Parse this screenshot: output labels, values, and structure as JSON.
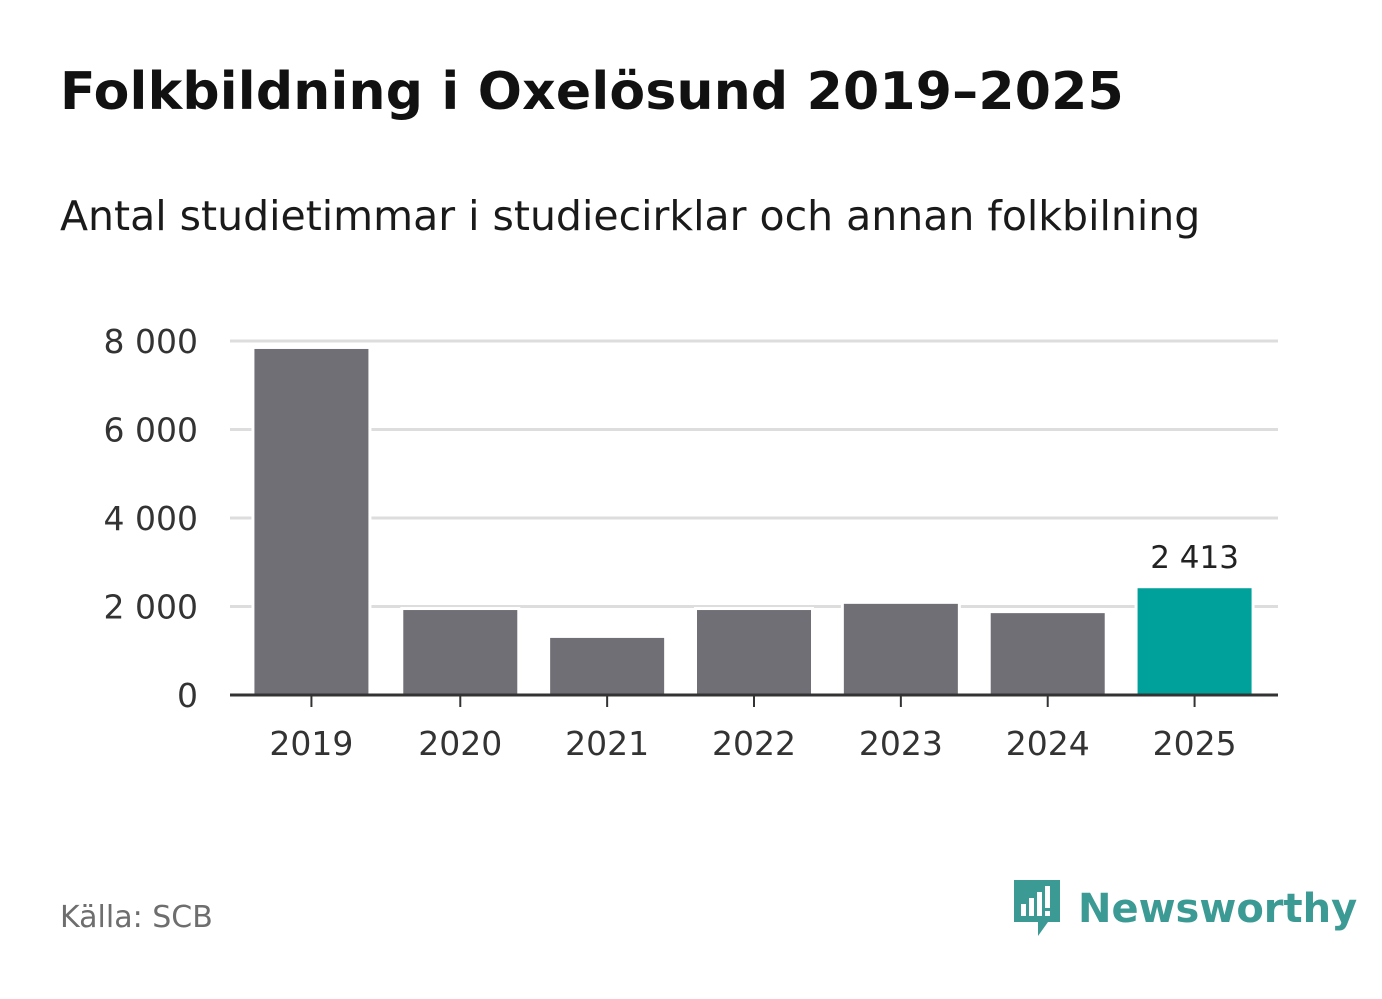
{
  "chart_data": {
    "type": "bar",
    "title": "Folkbildning i Oxelösund 2019–2025",
    "subtitle": "Antal studietimmar i studiecirklar och annan folkbilning",
    "categories": [
      "2019",
      "2020",
      "2021",
      "2022",
      "2023",
      "2024",
      "2025"
    ],
    "values": [
      7820,
      1920,
      1290,
      1920,
      2060,
      1850,
      2413
    ],
    "highlight_index": 6,
    "highlight_label": "2 413",
    "ylim": [
      0,
      8000
    ],
    "yticks": [
      0,
      2000,
      4000,
      6000,
      8000
    ],
    "ytick_labels": [
      "0",
      "2 000",
      "4 000",
      "6 000",
      "8 000"
    ],
    "grid": true,
    "colors": {
      "bar": "#706f75",
      "highlight": "#00a19a",
      "grid": "#dddddd",
      "axis": "#333333"
    }
  },
  "footer": {
    "source": "Källa: SCB",
    "brand": "Newsworthy",
    "brand_icon": "newsworthy-logo-icon",
    "brand_color": "#3c9a95"
  }
}
